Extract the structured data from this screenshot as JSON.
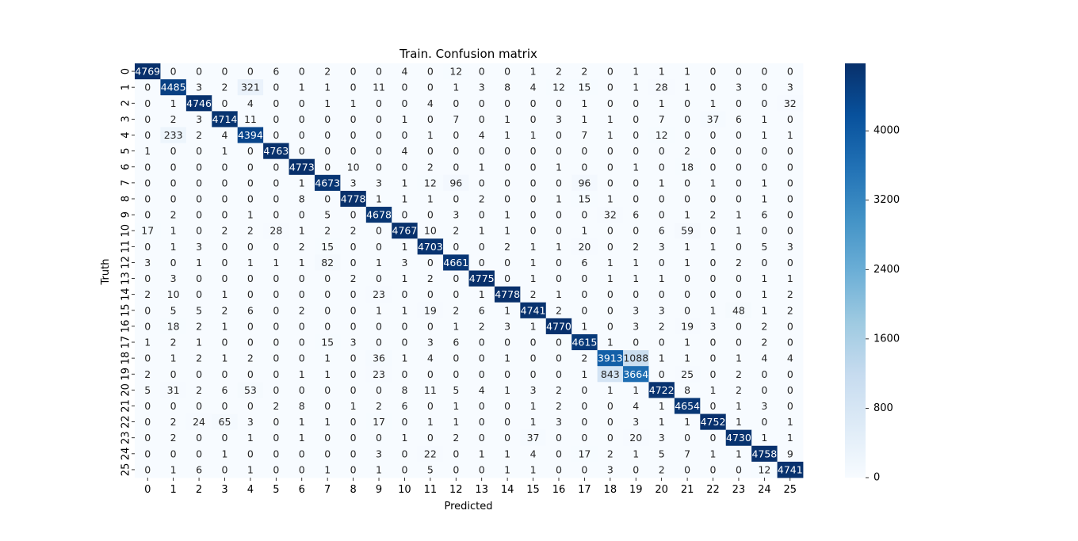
{
  "chart_data": {
    "type": "heatmap",
    "title": "Train. Confusion matrix",
    "xlabel": "Predicted",
    "ylabel": "Truth",
    "row_labels": [
      "0",
      "1",
      "2",
      "3",
      "4",
      "5",
      "6",
      "7",
      "8",
      "9",
      "10",
      "11",
      "12",
      "13",
      "14",
      "15",
      "16",
      "17",
      "18",
      "19",
      "20",
      "21",
      "22",
      "23",
      "24",
      "25"
    ],
    "col_labels": [
      "0",
      "1",
      "2",
      "3",
      "4",
      "5",
      "6",
      "7",
      "8",
      "9",
      "10",
      "11",
      "12",
      "13",
      "14",
      "15",
      "16",
      "17",
      "18",
      "19",
      "20",
      "21",
      "22",
      "23",
      "24",
      "25"
    ],
    "values": [
      [
        4769,
        0,
        0,
        0,
        0,
        6,
        0,
        2,
        0,
        0,
        4,
        0,
        12,
        0,
        0,
        1,
        2,
        2,
        0,
        1,
        1,
        1,
        0,
        0,
        0,
        0
      ],
      [
        0,
        4485,
        3,
        2,
        321,
        0,
        1,
        1,
        0,
        11,
        0,
        0,
        1,
        3,
        8,
        4,
        12,
        15,
        0,
        1,
        28,
        1,
        0,
        3,
        0,
        3
      ],
      [
        0,
        1,
        4746,
        0,
        4,
        0,
        0,
        1,
        1,
        0,
        0,
        4,
        0,
        0,
        0,
        0,
        0,
        1,
        0,
        0,
        1,
        0,
        1,
        0,
        0,
        32
      ],
      [
        0,
        2,
        3,
        4714,
        11,
        0,
        0,
        0,
        0,
        0,
        1,
        0,
        7,
        0,
        1,
        0,
        3,
        1,
        1,
        0,
        7,
        0,
        37,
        6,
        1,
        0
      ],
      [
        0,
        233,
        2,
        4,
        4394,
        0,
        0,
        0,
        0,
        0,
        0,
        1,
        0,
        4,
        1,
        1,
        0,
        7,
        1,
        0,
        12,
        0,
        0,
        0,
        1,
        1
      ],
      [
        1,
        0,
        0,
        1,
        0,
        4763,
        0,
        0,
        0,
        0,
        4,
        0,
        0,
        0,
        0,
        0,
        0,
        0,
        0,
        0,
        0,
        2,
        0,
        0,
        0,
        0
      ],
      [
        0,
        0,
        0,
        0,
        0,
        0,
        4773,
        0,
        10,
        0,
        0,
        2,
        0,
        1,
        0,
        0,
        1,
        0,
        0,
        1,
        0,
        18,
        0,
        0,
        0,
        0
      ],
      [
        0,
        0,
        0,
        0,
        0,
        0,
        1,
        4673,
        3,
        3,
        1,
        12,
        96,
        0,
        0,
        0,
        0,
        96,
        0,
        0,
        1,
        0,
        1,
        0,
        1,
        0
      ],
      [
        0,
        0,
        0,
        0,
        0,
        0,
        8,
        0,
        4778,
        1,
        1,
        1,
        0,
        2,
        0,
        0,
        1,
        15,
        1,
        0,
        0,
        0,
        0,
        0,
        1,
        0
      ],
      [
        0,
        2,
        0,
        0,
        1,
        0,
        0,
        5,
        0,
        4678,
        0,
        0,
        3,
        0,
        1,
        0,
        0,
        0,
        32,
        6,
        0,
        1,
        2,
        1,
        6,
        0
      ],
      [
        17,
        1,
        0,
        2,
        2,
        28,
        1,
        2,
        2,
        0,
        4767,
        10,
        2,
        1,
        1,
        0,
        0,
        1,
        0,
        0,
        6,
        59,
        0,
        1,
        0,
        0
      ],
      [
        0,
        1,
        3,
        0,
        0,
        0,
        2,
        15,
        0,
        0,
        1,
        4703,
        0,
        0,
        2,
        1,
        1,
        20,
        0,
        2,
        3,
        1,
        1,
        0,
        5,
        3
      ],
      [
        3,
        0,
        1,
        0,
        1,
        1,
        1,
        82,
        0,
        1,
        3,
        0,
        4661,
        0,
        0,
        1,
        0,
        6,
        1,
        1,
        0,
        1,
        0,
        2,
        0,
        0
      ],
      [
        0,
        3,
        0,
        0,
        0,
        0,
        0,
        0,
        2,
        0,
        1,
        2,
        0,
        4775,
        0,
        1,
        0,
        0,
        1,
        1,
        1,
        0,
        0,
        0,
        1,
        1
      ],
      [
        2,
        10,
        0,
        1,
        0,
        0,
        0,
        0,
        0,
        23,
        0,
        0,
        0,
        1,
        4778,
        2,
        1,
        0,
        0,
        0,
        0,
        0,
        0,
        0,
        1,
        2
      ],
      [
        0,
        5,
        5,
        2,
        6,
        0,
        2,
        0,
        0,
        1,
        1,
        19,
        2,
        6,
        1,
        4741,
        2,
        0,
        0,
        3,
        3,
        0,
        1,
        48,
        1,
        2
      ],
      [
        0,
        18,
        2,
        1,
        0,
        0,
        0,
        0,
        0,
        0,
        0,
        0,
        1,
        2,
        3,
        1,
        4770,
        1,
        0,
        3,
        2,
        19,
        3,
        0,
        2,
        0
      ],
      [
        1,
        2,
        1,
        0,
        0,
        0,
        0,
        15,
        3,
        0,
        0,
        3,
        6,
        0,
        0,
        0,
        0,
        4615,
        1,
        0,
        0,
        1,
        0,
        0,
        2,
        0
      ],
      [
        0,
        1,
        2,
        1,
        2,
        0,
        0,
        1,
        0,
        36,
        1,
        4,
        0,
        0,
        1,
        0,
        0,
        2,
        3913,
        1088,
        1,
        1,
        0,
        1,
        4,
        4
      ],
      [
        2,
        0,
        0,
        0,
        0,
        0,
        1,
        1,
        0,
        23,
        0,
        0,
        0,
        0,
        0,
        0,
        0,
        1,
        843,
        3664,
        0,
        25,
        0,
        2,
        0,
        0
      ],
      [
        5,
        31,
        2,
        6,
        53,
        0,
        0,
        0,
        0,
        0,
        8,
        11,
        5,
        4,
        1,
        3,
        2,
        0,
        1,
        1,
        4722,
        8,
        1,
        2,
        0,
        0
      ],
      [
        0,
        0,
        0,
        0,
        0,
        2,
        8,
        0,
        1,
        2,
        6,
        0,
        1,
        0,
        0,
        1,
        2,
        0,
        0,
        4,
        1,
        4654,
        0,
        1,
        3,
        0
      ],
      [
        0,
        2,
        24,
        65,
        3,
        0,
        1,
        1,
        0,
        17,
        0,
        1,
        1,
        0,
        0,
        1,
        3,
        0,
        0,
        3,
        1,
        1,
        4752,
        1,
        0,
        1
      ],
      [
        0,
        2,
        0,
        0,
        1,
        0,
        1,
        0,
        0,
        0,
        1,
        0,
        2,
        0,
        0,
        37,
        0,
        0,
        0,
        20,
        3,
        0,
        0,
        4730,
        1,
        1
      ],
      [
        0,
        0,
        0,
        1,
        0,
        0,
        0,
        0,
        0,
        3,
        0,
        22,
        0,
        1,
        1,
        4,
        0,
        17,
        2,
        1,
        5,
        7,
        1,
        1,
        4758,
        9
      ],
      [
        0,
        1,
        6,
        0,
        1,
        0,
        0,
        1,
        0,
        1,
        0,
        5,
        0,
        0,
        1,
        1,
        0,
        0,
        3,
        0,
        2,
        0,
        0,
        0,
        12,
        4741
      ]
    ],
    "vmin": 0,
    "vmax": 4778,
    "colormap": "Blues",
    "colorbar": {
      "ticks": [
        0,
        800,
        1600,
        2400,
        3200,
        4000
      ],
      "tick_labels": [
        "0",
        "800",
        "1600",
        "2400",
        "3200",
        "4000"
      ]
    },
    "grid": false,
    "annotations": true,
    "colors": {
      "low": "#f7fbff",
      "high": "#08306b",
      "text_dark": "#262626",
      "text_light": "#ffffff"
    }
  }
}
